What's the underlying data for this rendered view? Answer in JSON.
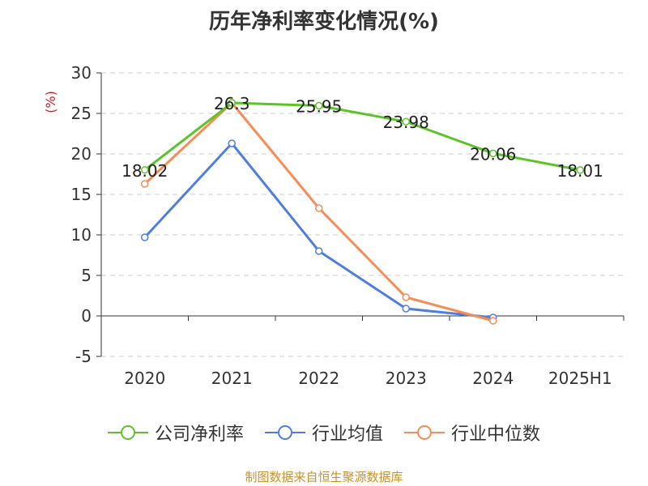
{
  "title": "历年净利率变化情况(%)",
  "source_note": "制图数据来自恒生聚源数据库",
  "colors": {
    "company": "#5cc429",
    "industry_avg": "#4f7fdc",
    "industry_median": "#f88c56",
    "y_unit": "#cc2222",
    "source_note": "#c9902c",
    "grid": "#cccccc",
    "axis": "#333333"
  },
  "chart_data": {
    "type": "line",
    "title": "历年净利率变化情况(%)",
    "xlabel": "",
    "ylabel": "(%)",
    "categories": [
      "2020",
      "2021",
      "2022",
      "2023",
      "2024",
      "2025H1"
    ],
    "ylim": [
      -5,
      30
    ],
    "yticks": [
      -5,
      0,
      5,
      10,
      15,
      20,
      25,
      30
    ],
    "grid": "horizontal dashed",
    "legend_position": "bottom",
    "series": [
      {
        "name": "公司净利率",
        "color": "#5cc429",
        "values": [
          18.02,
          26.3,
          25.95,
          23.98,
          20.06,
          18.01
        ],
        "labels": [
          "18.02",
          "26.3",
          "25.95",
          "23.98",
          "20.06",
          "18.01"
        ]
      },
      {
        "name": "行业均值",
        "color": "#4f7fdc",
        "values": [
          9.7,
          21.3,
          8.0,
          0.9,
          -0.2,
          null
        ]
      },
      {
        "name": "行业中位数",
        "color": "#f88c56",
        "values": [
          16.3,
          26.3,
          13.3,
          2.3,
          -0.6,
          null
        ]
      }
    ]
  }
}
